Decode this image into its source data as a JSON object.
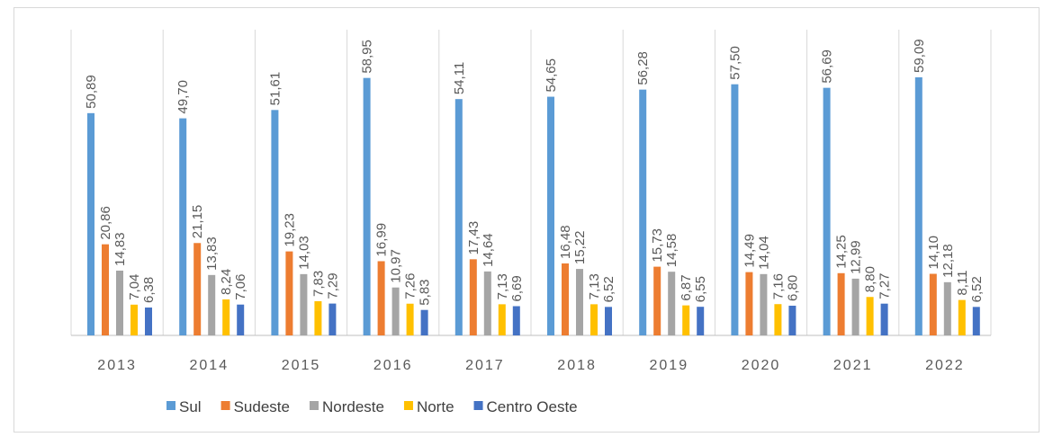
{
  "chart_data": {
    "type": "bar",
    "categories": [
      "2013",
      "2014",
      "2015",
      "2016",
      "2017",
      "2018",
      "2019",
      "2020",
      "2021",
      "2022"
    ],
    "ylim": [
      0,
      70
    ],
    "series": [
      {
        "name": "Sul",
        "color": "#5b9bd5",
        "values": [
          50.89,
          49.7,
          51.61,
          58.95,
          54.11,
          54.65,
          56.28,
          57.5,
          56.69,
          59.09
        ],
        "value_labels": [
          "50,89",
          "49,70",
          "51,61",
          "58,95",
          "54,11",
          "54,65",
          "56,28",
          "57,50",
          "56,69",
          "59,09"
        ]
      },
      {
        "name": "Sudeste",
        "color": "#ed7d31",
        "values": [
          20.86,
          21.15,
          19.23,
          16.99,
          17.43,
          16.48,
          15.73,
          14.49,
          14.25,
          14.1
        ],
        "value_labels": [
          "20,86",
          "21,15",
          "19,23",
          "16,99",
          "17,43",
          "16,48",
          "15,73",
          "14,49",
          "14,25",
          "14,10"
        ]
      },
      {
        "name": "Nordeste",
        "color": "#a5a5a5",
        "values": [
          14.83,
          13.83,
          14.03,
          10.97,
          14.64,
          15.22,
          14.58,
          14.04,
          12.99,
          12.18
        ],
        "value_labels": [
          "14,83",
          "13,83",
          "14,03",
          "10,97",
          "14,64",
          "15,22",
          "14,58",
          "14,04",
          "12,99",
          "12,18"
        ]
      },
      {
        "name": "Norte",
        "color": "#ffc000",
        "values": [
          7.04,
          8.24,
          7.83,
          7.26,
          7.13,
          7.13,
          6.87,
          7.16,
          8.8,
          8.11
        ],
        "value_labels": [
          "7,04",
          "8,24",
          "7,83",
          "7,26",
          "7,13",
          "7,13",
          "6,87",
          "7,16",
          "8,80",
          "8,11"
        ]
      },
      {
        "name": "Centro Oeste",
        "color": "#4472c4",
        "values": [
          6.38,
          7.06,
          7.29,
          5.83,
          6.69,
          6.52,
          6.55,
          6.8,
          7.27,
          6.52
        ],
        "value_labels": [
          "6,38",
          "7,06",
          "7,29",
          "5,83",
          "6,69",
          "6,52",
          "6,55",
          "6,80",
          "7,27",
          "6,52"
        ]
      }
    ]
  }
}
